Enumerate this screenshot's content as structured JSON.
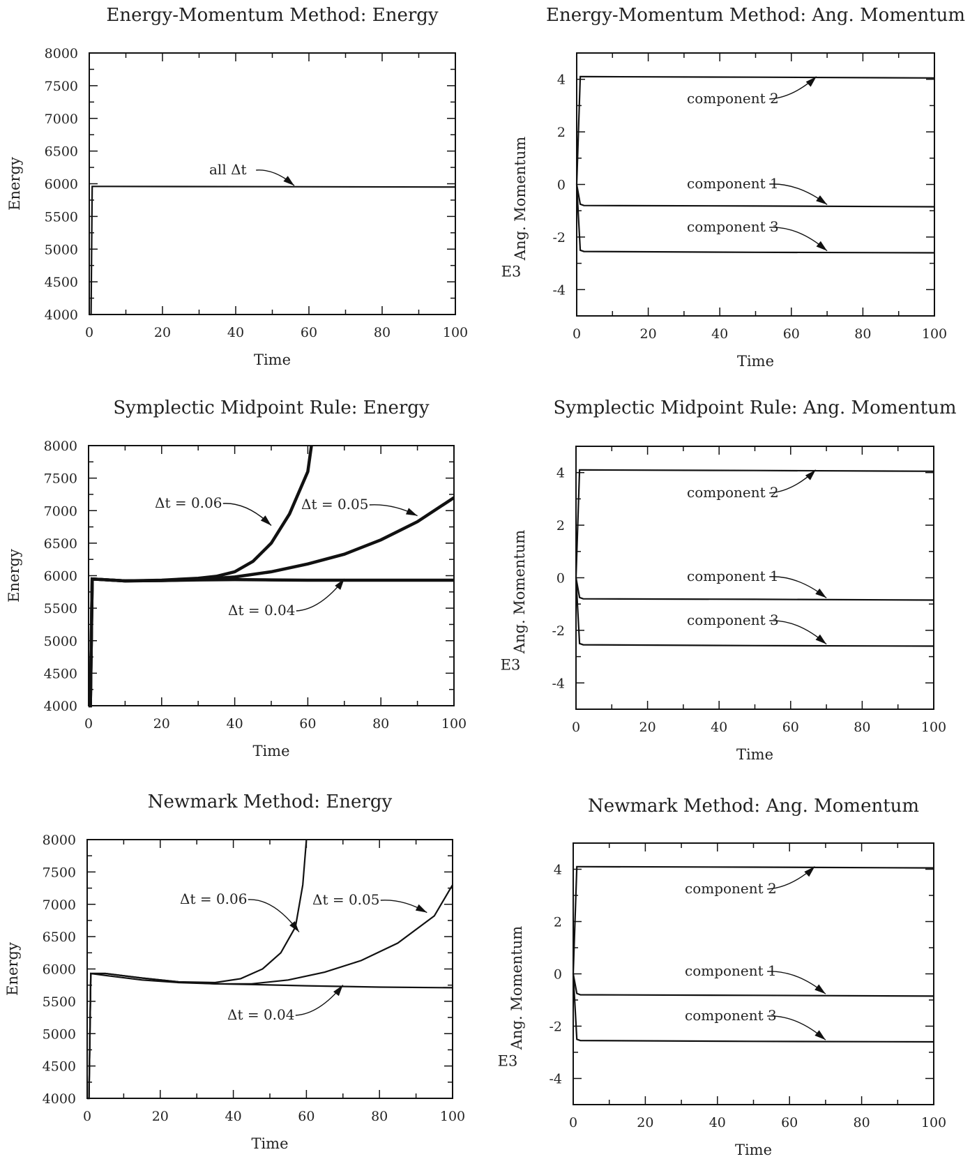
{
  "chart_data": [
    {
      "id": "em_energy",
      "type": "line",
      "title": "Energy-Momentum Method: Energy",
      "xlabel": "Time",
      "ylabel": "Energy",
      "xlim": [
        0,
        100
      ],
      "ylim": [
        4000,
        8000
      ],
      "xticks": [
        0,
        20,
        40,
        60,
        80,
        100
      ],
      "yticks": [
        4000,
        4500,
        5000,
        5500,
        6000,
        6500,
        7000,
        7500,
        8000
      ],
      "series": [
        {
          "x": [
            0,
            0.5,
            0.8,
            5,
            50,
            100
          ],
          "y": [
            4000,
            4000,
            5960,
            5960,
            5955,
            5950
          ]
        }
      ],
      "annotations": [
        {
          "text": "all Δt",
          "x": 56,
          "y": 5950
        }
      ]
    },
    {
      "id": "em_momentum",
      "type": "line",
      "title": "Energy-Momentum Method: Ang. Momentum",
      "xlabel": "Time",
      "ylabel": "Ang. Momentum",
      "yscale_label": "E3",
      "xlim": [
        0,
        100
      ],
      "ylim": [
        -5,
        5
      ],
      "xticks": [
        0,
        20,
        40,
        60,
        80,
        100
      ],
      "yticks": [
        -4,
        -2,
        0,
        2,
        4
      ],
      "series": [
        {
          "x": [
            0,
            1,
            2,
            50,
            100
          ],
          "y": [
            0,
            4.1,
            4.1,
            4.08,
            4.05
          ]
        },
        {
          "x": [
            0,
            1,
            2,
            50,
            100
          ],
          "y": [
            0,
            -0.75,
            -0.8,
            -0.82,
            -0.85
          ]
        },
        {
          "x": [
            0,
            1,
            2,
            50,
            100
          ],
          "y": [
            0,
            -2.5,
            -2.55,
            -2.58,
            -2.6
          ]
        }
      ],
      "annotations": [
        {
          "text": "component 2",
          "x": 67,
          "y": 4.05
        },
        {
          "text": "component 1",
          "x": 70,
          "y": -0.82
        },
        {
          "text": "component 3",
          "x": 70,
          "y": -2.58
        }
      ]
    },
    {
      "id": "smr_energy",
      "type": "line",
      "title": "Symplectic Midpoint Rule: Energy",
      "xlabel": "Time",
      "ylabel": "Energy",
      "xlim": [
        0,
        100
      ],
      "ylim": [
        4000,
        8000
      ],
      "xticks": [
        0,
        20,
        40,
        60,
        80,
        100
      ],
      "yticks": [
        4000,
        4500,
        5000,
        5500,
        6000,
        6500,
        7000,
        7500,
        8000
      ],
      "series": [
        {
          "x": [
            0,
            0.5,
            1,
            10,
            20,
            30,
            35,
            40,
            45,
            50,
            55,
            60,
            61
          ],
          "y": [
            4000,
            4000,
            5950,
            5920,
            5930,
            5960,
            5990,
            6060,
            6220,
            6500,
            6950,
            7600,
            8000
          ]
        },
        {
          "x": [
            0,
            0.5,
            1,
            10,
            20,
            30,
            40,
            50,
            60,
            70,
            80,
            90,
            100
          ],
          "y": [
            4000,
            4000,
            5950,
            5920,
            5925,
            5940,
            5980,
            6060,
            6180,
            6330,
            6550,
            6830,
            7200
          ]
        },
        {
          "x": [
            0,
            0.5,
            1,
            10,
            20,
            30,
            40,
            50,
            60,
            70,
            80,
            90,
            100
          ],
          "y": [
            4000,
            4000,
            5950,
            5920,
            5925,
            5935,
            5940,
            5935,
            5930,
            5930,
            5930,
            5930,
            5930
          ]
        }
      ],
      "annotations": [
        {
          "text": "Δt = 0.06",
          "x": 50,
          "y": 6750
        },
        {
          "text": "Δt = 0.05",
          "x": 90,
          "y": 6900
        },
        {
          "text": "Δt = 0.04",
          "x": 70,
          "y": 5930
        }
      ]
    },
    {
      "id": "smr_momentum",
      "type": "line",
      "title": "Symplectic Midpoint Rule: Ang. Momentum",
      "xlabel": "Time",
      "ylabel": "Ang. Momentum",
      "yscale_label": "E3",
      "xlim": [
        0,
        100
      ],
      "ylim": [
        -5,
        5
      ],
      "xticks": [
        0,
        20,
        40,
        60,
        80,
        100
      ],
      "yticks": [
        -4,
        -2,
        0,
        2,
        4
      ],
      "series": [
        {
          "x": [
            0,
            1,
            2,
            50,
            100
          ],
          "y": [
            0,
            4.1,
            4.1,
            4.08,
            4.05
          ]
        },
        {
          "x": [
            0,
            1,
            2,
            50,
            100
          ],
          "y": [
            0,
            -0.75,
            -0.8,
            -0.82,
            -0.85
          ]
        },
        {
          "x": [
            0,
            1,
            2,
            50,
            100
          ],
          "y": [
            0,
            -2.5,
            -2.55,
            -2.58,
            -2.6
          ]
        }
      ],
      "annotations": [
        {
          "text": "component 2",
          "x": 67,
          "y": 4.05
        },
        {
          "text": "component 1",
          "x": 70,
          "y": -0.82
        },
        {
          "text": "component 3",
          "x": 70,
          "y": -2.58
        }
      ]
    },
    {
      "id": "nm_energy",
      "type": "line",
      "title": "Newmark Method: Energy",
      "xlabel": "Time",
      "ylabel": "Energy",
      "xlim": [
        0,
        100
      ],
      "ylim": [
        4000,
        8000
      ],
      "xticks": [
        0,
        20,
        40,
        60,
        80,
        100
      ],
      "yticks": [
        4000,
        4500,
        5000,
        5500,
        6000,
        6500,
        7000,
        7500,
        8000
      ],
      "series": [
        {
          "x": [
            0,
            0.5,
            1,
            5,
            15,
            25,
            35,
            42,
            48,
            53,
            57,
            59,
            60
          ],
          "y": [
            4000,
            4000,
            5930,
            5930,
            5860,
            5800,
            5790,
            5850,
            6000,
            6250,
            6650,
            7300,
            8000
          ]
        },
        {
          "x": [
            0,
            0.5,
            1,
            5,
            15,
            25,
            35,
            45,
            55,
            65,
            75,
            85,
            95,
            100
          ],
          "y": [
            4000,
            4000,
            5930,
            5930,
            5860,
            5800,
            5770,
            5770,
            5830,
            5950,
            6130,
            6400,
            6820,
            7300
          ]
        },
        {
          "x": [
            0,
            0.5,
            1,
            5,
            15,
            25,
            35,
            45,
            60,
            80,
            100
          ],
          "y": [
            4000,
            4000,
            5930,
            5900,
            5830,
            5790,
            5770,
            5760,
            5740,
            5720,
            5710
          ]
        }
      ],
      "annotations": [
        {
          "text": "Δt = 0.06",
          "x": 58,
          "y": 6550
        },
        {
          "text": "Δt = 0.05",
          "x": 93,
          "y": 6850
        },
        {
          "text": "Δt = 0.04",
          "x": 70,
          "y": 5730
        }
      ]
    },
    {
      "id": "nm_momentum",
      "type": "line",
      "title": "Newmark Method: Ang. Momentum",
      "xlabel": "Time",
      "ylabel": "Ang. Momentum",
      "yscale_label": "E3",
      "xlim": [
        0,
        100
      ],
      "ylim": [
        -5,
        5
      ],
      "xticks": [
        0,
        20,
        40,
        60,
        80,
        100
      ],
      "yticks": [
        -4,
        -2,
        0,
        2,
        4
      ],
      "series": [
        {
          "x": [
            0,
            1,
            2,
            50,
            100
          ],
          "y": [
            0,
            4.1,
            4.1,
            4.08,
            4.05
          ]
        },
        {
          "x": [
            0,
            1,
            2,
            50,
            100
          ],
          "y": [
            0,
            -0.75,
            -0.8,
            -0.82,
            -0.85
          ]
        },
        {
          "x": [
            0,
            1,
            2,
            50,
            100
          ],
          "y": [
            0,
            -2.5,
            -2.55,
            -2.58,
            -2.6
          ]
        }
      ],
      "annotations": [
        {
          "text": "component 2",
          "x": 67,
          "y": 4.05
        },
        {
          "text": "component 1",
          "x": 70,
          "y": -0.82
        },
        {
          "text": "component 3",
          "x": 70,
          "y": -2.58
        }
      ]
    }
  ]
}
